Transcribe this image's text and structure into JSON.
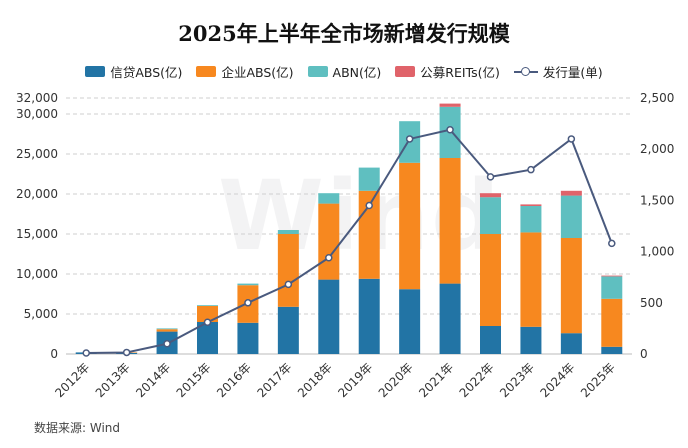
{
  "title": "2025年上半年全市场新增发行规模",
  "source": "数据来源: Wind",
  "watermark": "Wind",
  "chart_data": {
    "type": "bar",
    "stacked": true,
    "categories": [
      "2012年",
      "2013年",
      "2014年",
      "2015年",
      "2016年",
      "2017年",
      "2018年",
      "2019年",
      "2020年",
      "2021年",
      "2022年",
      "2023年",
      "2024年",
      "2025年"
    ],
    "series": [
      {
        "name": "信贷ABS(亿)",
        "color": "#2274a5",
        "axis": "left",
        "values": [
          200,
          150,
          2800,
          4000,
          3900,
          5900,
          9300,
          9400,
          8100,
          8800,
          3500,
          3400,
          2600,
          900
        ]
      },
      {
        "name": "企业ABS(亿)",
        "color": "#f7881f",
        "axis": "left",
        "values": [
          0,
          50,
          300,
          2000,
          4700,
          9100,
          9500,
          11000,
          15800,
          15700,
          11500,
          11800,
          11900,
          6000
        ]
      },
      {
        "name": "ABN(亿)",
        "color": "#5fbfc0",
        "axis": "left",
        "values": [
          0,
          0,
          100,
          100,
          200,
          500,
          1300,
          2900,
          5200,
          6400,
          4600,
          3300,
          5300,
          2800
        ]
      },
      {
        "name": "公募REITs(亿)",
        "color": "#e0636a",
        "axis": "left",
        "values": [
          0,
          0,
          0,
          0,
          0,
          0,
          0,
          0,
          0,
          400,
          500,
          200,
          600,
          100
        ]
      },
      {
        "name": "发行量(单)",
        "type": "line",
        "color": "#4a5a7e",
        "axis": "right",
        "values": [
          10,
          15,
          100,
          310,
          500,
          680,
          940,
          1450,
          2100,
          2190,
          1730,
          1800,
          2100,
          1080
        ]
      }
    ],
    "y_left": {
      "ticks": [
        "0",
        "5,000",
        "10,000",
        "15,000",
        "20,000",
        "25,000",
        "30,000",
        "32,000"
      ],
      "range": [
        0,
        32000
      ]
    },
    "y_right": {
      "ticks": [
        "0",
        "500",
        "1,000",
        "1,500",
        "2,000",
        "2,500"
      ],
      "range": [
        0,
        2500
      ]
    },
    "grid": "horizontal-dashed",
    "legend_position": "top"
  }
}
